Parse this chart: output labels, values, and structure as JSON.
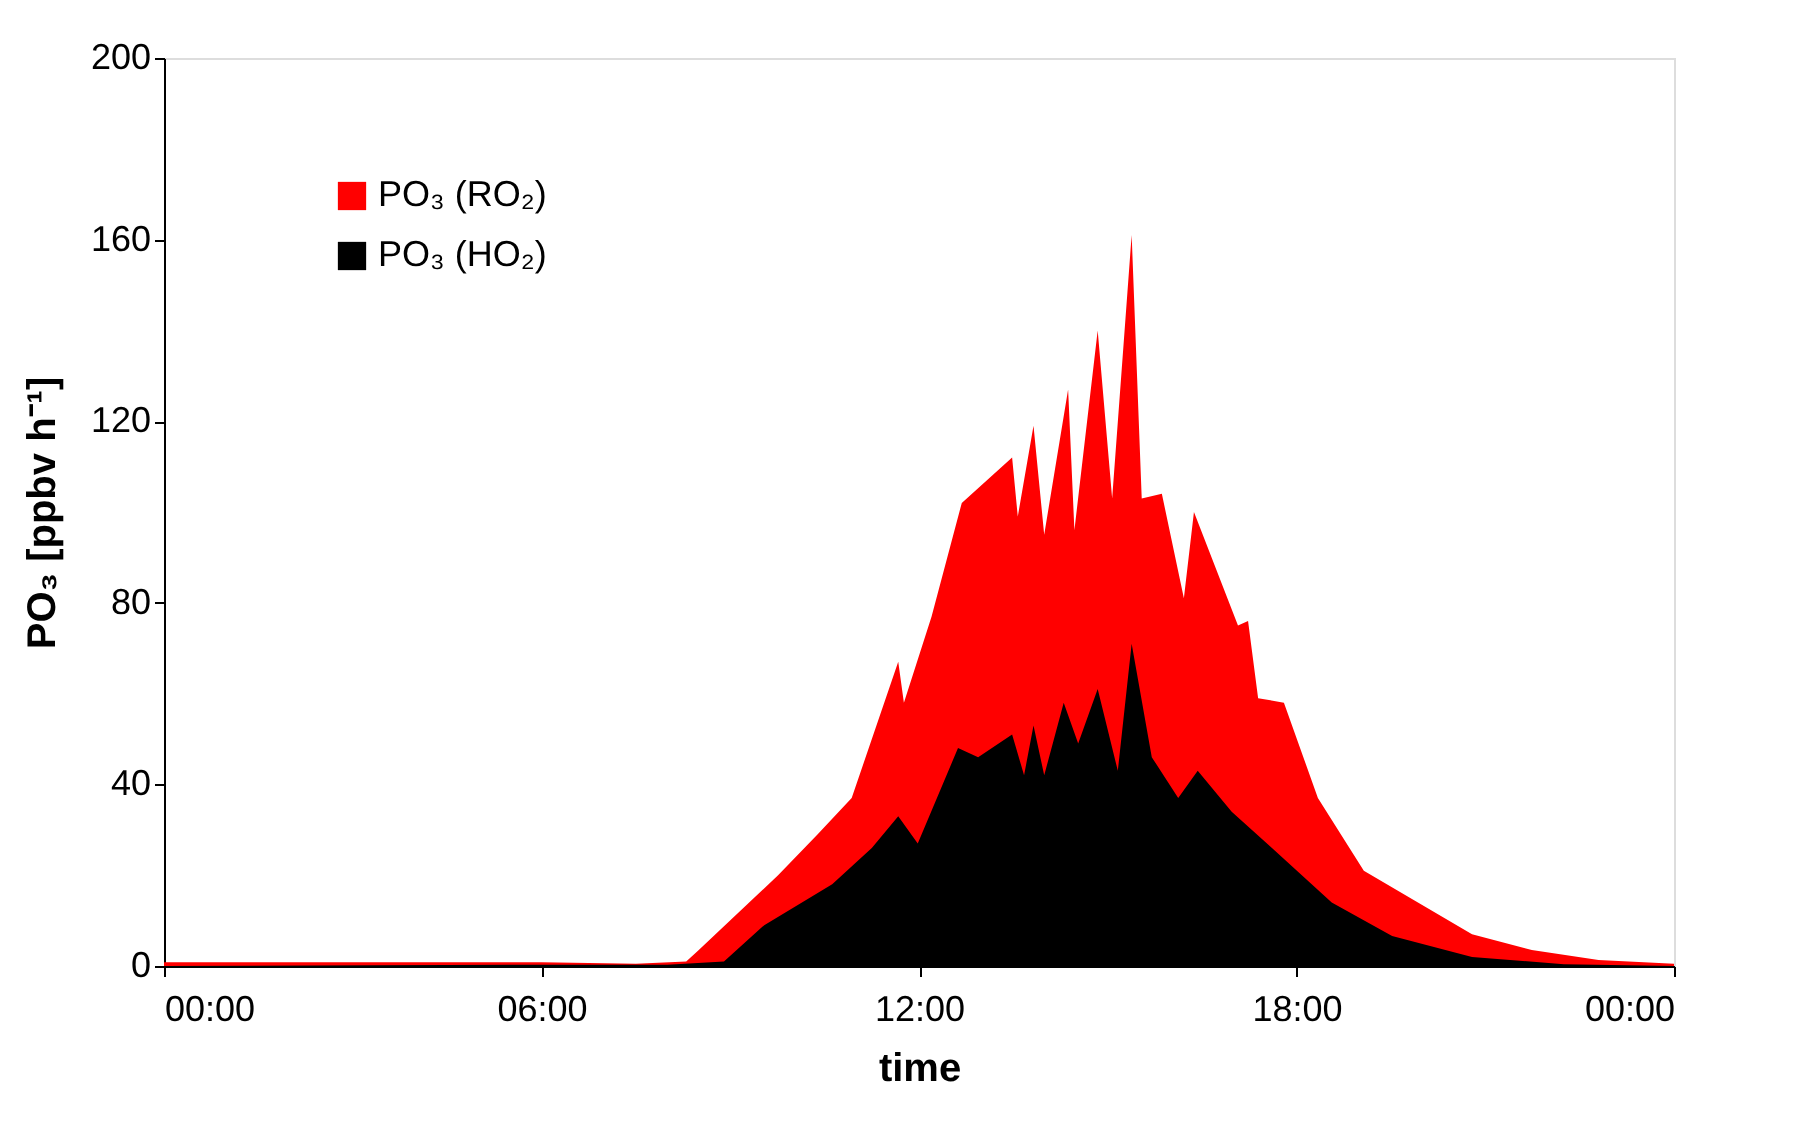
{
  "chart_data": {
    "type": "area",
    "xlabel": "time",
    "ylabel": "PO₃ [ppbv h⁻¹]",
    "xlim": [
      0,
      24
    ],
    "xticks": [
      {
        "value": 0,
        "label": "00:00"
      },
      {
        "value": 6,
        "label": "06:00"
      },
      {
        "value": 12,
        "label": "12:00"
      },
      {
        "value": 18,
        "label": "18:00"
      },
      {
        "value": 24,
        "label": "00:00"
      }
    ],
    "ylim": [
      0,
      200
    ],
    "yticks": [
      0,
      40,
      80,
      120,
      160,
      200
    ],
    "grid": false,
    "legend": "top left",
    "series": [
      {
        "name": "PO₃ (RO₂)",
        "color": "#ff0000",
        "x": [
          0,
          2,
          4,
          6,
          7.5,
          8.3,
          8.5,
          9.76,
          10.39,
          10.93,
          11.67,
          11.76,
          12.2,
          12.68,
          13.48,
          13.57,
          13.82,
          13.99,
          14.37,
          14.47,
          14.84,
          15.07,
          15.38,
          15.54,
          15.86,
          16.21,
          16.37,
          17.07,
          17.23,
          17.39,
          17.8,
          18.34,
          19.07,
          19.93,
          20.79,
          21.74,
          22.8,
          24
        ],
        "values": [
          0.8,
          0.8,
          0.8,
          0.8,
          0.5,
          1,
          3.5,
          20,
          29,
          37,
          67,
          58,
          77,
          102,
          112,
          99,
          119,
          95,
          127,
          96,
          140,
          103,
          161,
          103,
          104,
          81,
          100,
          75,
          76,
          59,
          58,
          37,
          21,
          14,
          7,
          3.5,
          1.3,
          0.5
        ]
      },
      {
        "name": "PO₃ (HO₂)",
        "color": "#000000",
        "x": [
          0,
          6,
          8,
          8.9,
          9.54,
          10.62,
          11.25,
          11.67,
          11.98,
          12.62,
          12.94,
          13.48,
          13.67,
          13.82,
          13.99,
          14.3,
          14.53,
          14.84,
          15.16,
          15.38,
          15.7,
          16.12,
          16.43,
          16.97,
          17.61,
          18.56,
          19.52,
          20.79,
          22.25,
          24
        ],
        "values": [
          0,
          0.3,
          0.3,
          1,
          9,
          18,
          26,
          33,
          27,
          48,
          46,
          51,
          42,
          53,
          42,
          58,
          49,
          61,
          43,
          71,
          46,
          37,
          43,
          34,
          26,
          14,
          6.6,
          2,
          0.4,
          0
        ]
      }
    ]
  }
}
